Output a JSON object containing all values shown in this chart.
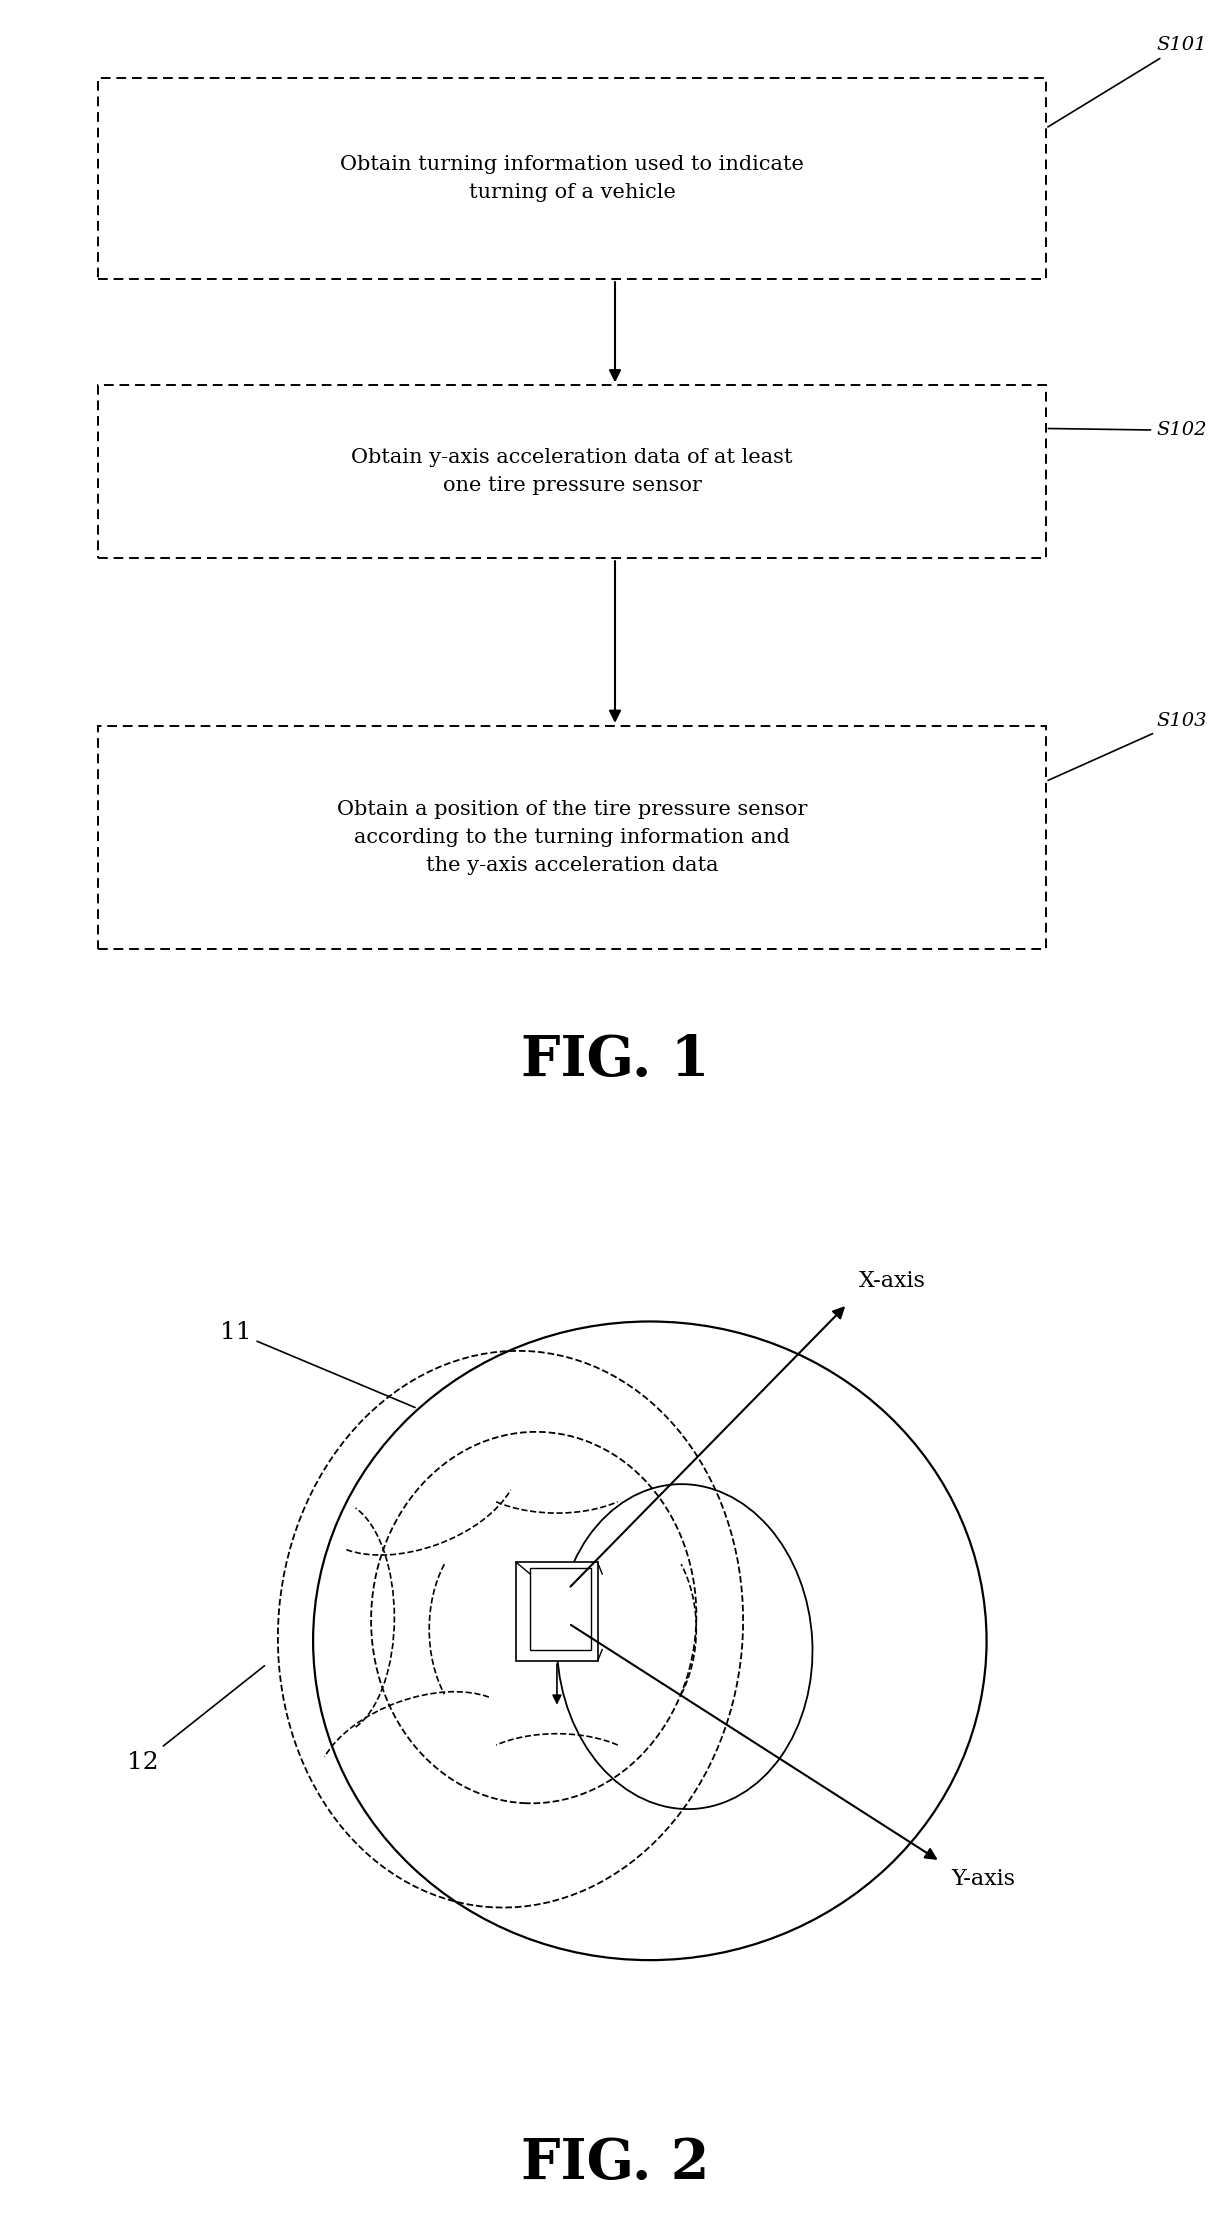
{
  "fig_width": 12.3,
  "fig_height": 22.33,
  "bg_color": "#ffffff",
  "box_color": "#000000",
  "text_color": "#000000",
  "font_family": "serif",
  "fig1_label": "FIG. 1",
  "fig2_label": "FIG. 2",
  "box1_text": "Obtain turning information used to indicate\nturning of a vehicle",
  "box2_text": "Obtain y-axis acceleration data of at least\none tire pressure sensor",
  "box3_text": "Obtain a position of the tire pressure sensor\naccording to the turning information and\nthe y-axis acceleration data",
  "label1": "S101",
  "label2": "S102",
  "label3": "S103",
  "xaxis_label": "X-axis",
  "yaxis_label": "Y-axis",
  "label11": "11",
  "label12": "12"
}
